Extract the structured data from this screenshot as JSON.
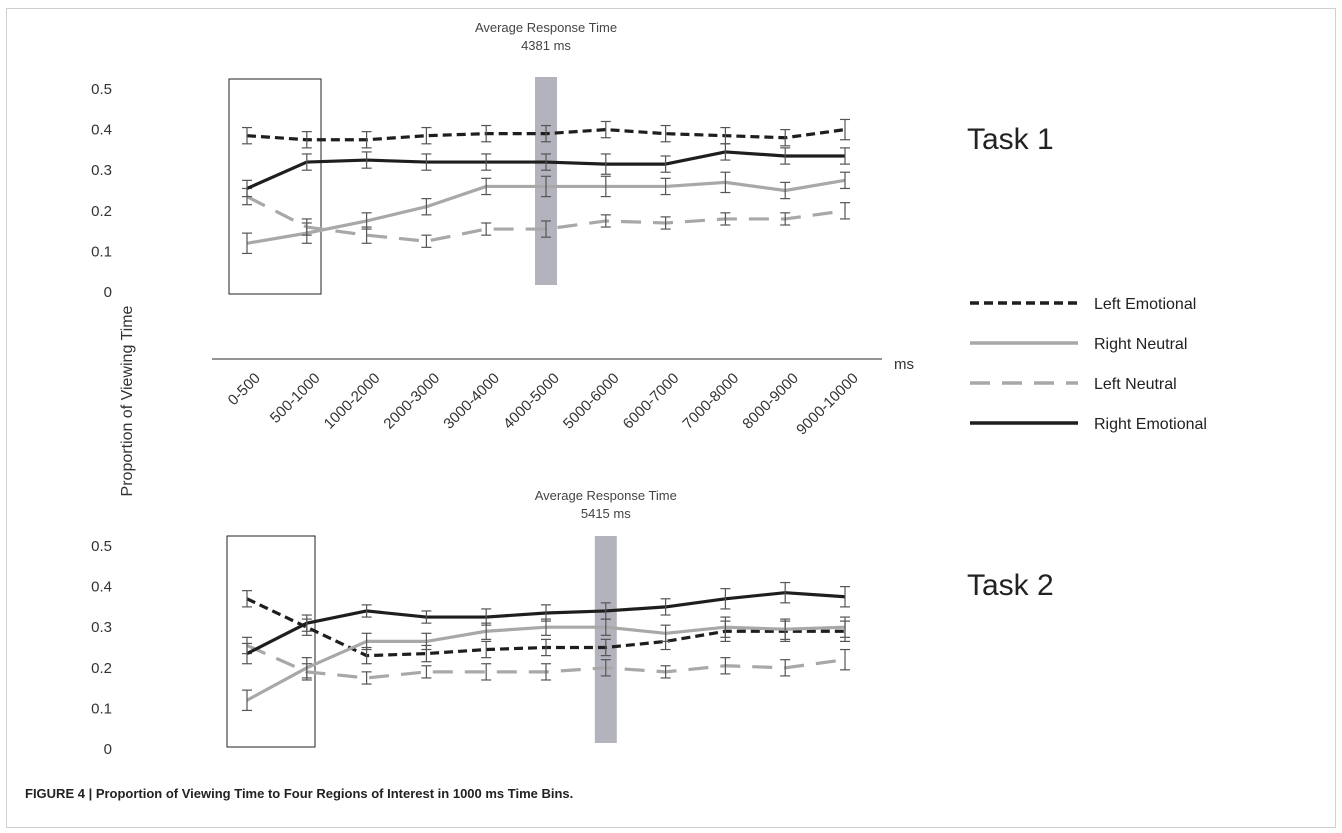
{
  "caption": "FIGURE 4 | Proportion of Viewing Time to Four Regions of Interest in 1000 ms Time Bins.",
  "y_axis_label": "Proportion of Viewing Time",
  "x_unit_label": "ms",
  "colors": {
    "dark": "#1e1e1e",
    "light": "#a8a8a8",
    "band": "#b3b3be"
  },
  "legend": [
    {
      "name": "Left Emotional",
      "color": "#1e1e1e",
      "dash": "dashed-short"
    },
    {
      "name": "Right Neutral",
      "color": "#a8a8a8",
      "dash": "solid"
    },
    {
      "name": "Left Neutral",
      "color": "#a8a8a8",
      "dash": "dashed-long"
    },
    {
      "name": "Right Emotional",
      "color": "#1e1e1e",
      "dash": "solid"
    }
  ],
  "chart_data": [
    {
      "type": "line",
      "title": "Task 1",
      "categories": [
        "0-500",
        "500-1000",
        "1000-2000",
        "2000-3000",
        "3000-4000",
        "4000-5000",
        "5000-6000",
        "6000-7000",
        "7000-8000",
        "8000-9000",
        "9000-10000"
      ],
      "ylim": [
        0,
        0.5
      ],
      "y_ticks": [
        "0",
        "0.1",
        "0.2",
        "0.3",
        "0.4",
        "0.5"
      ],
      "avg_response": {
        "label": "Average Response Time",
        "value": "4381 ms",
        "position": 5.0
      },
      "highlight_box": [
        "0-500",
        "500-1000"
      ],
      "series": [
        {
          "name": "Left Emotional",
          "values": [
            0.385,
            0.375,
            0.375,
            0.385,
            0.39,
            0.39,
            0.4,
            0.39,
            0.385,
            0.38,
            0.4
          ],
          "err": [
            0.02,
            0.02,
            0.02,
            0.02,
            0.02,
            0.02,
            0.02,
            0.02,
            0.02,
            0.02,
            0.025
          ]
        },
        {
          "name": "Right Neutral",
          "values": [
            0.12,
            0.145,
            0.175,
            0.21,
            0.26,
            0.26,
            0.26,
            0.26,
            0.27,
            0.25,
            0.275
          ],
          "err": [
            0.025,
            0.025,
            0.02,
            0.02,
            0.02,
            0.025,
            0.025,
            0.02,
            0.025,
            0.02,
            0.02
          ]
        },
        {
          "name": "Left Neutral",
          "values": [
            0.235,
            0.16,
            0.14,
            0.125,
            0.155,
            0.155,
            0.175,
            0.17,
            0.18,
            0.18,
            0.2
          ],
          "err": [
            0.02,
            0.02,
            0.02,
            0.015,
            0.015,
            0.02,
            0.015,
            0.015,
            0.015,
            0.015,
            0.02
          ]
        },
        {
          "name": "Right Emotional",
          "values": [
            0.255,
            0.32,
            0.325,
            0.32,
            0.32,
            0.32,
            0.315,
            0.315,
            0.345,
            0.335,
            0.335
          ],
          "err": [
            0.02,
            0.02,
            0.02,
            0.02,
            0.02,
            0.02,
            0.025,
            0.02,
            0.02,
            0.02,
            0.02
          ]
        }
      ]
    },
    {
      "type": "line",
      "title": "Task 2",
      "categories": [
        "0-500",
        "500-1000",
        "1000-2000",
        "2000-3000",
        "3000-4000",
        "4000-5000",
        "5000-6000",
        "6000-7000",
        "7000-8000",
        "8000-9000",
        "9000-10000"
      ],
      "ylim": [
        0,
        0.5
      ],
      "y_ticks": [
        "0",
        "0.1",
        "0.2",
        "0.3",
        "0.4",
        "0.5"
      ],
      "avg_response": {
        "label": "Average Response Time",
        "value": "5415 ms",
        "position": 6.0
      },
      "highlight_box": [
        "0-500",
        "500-1000"
      ],
      "series": [
        {
          "name": "Left Emotional",
          "values": [
            0.37,
            0.3,
            0.23,
            0.235,
            0.245,
            0.25,
            0.25,
            0.265,
            0.29,
            0.29,
            0.29
          ],
          "err": [
            0.02,
            0.02,
            0.02,
            0.02,
            0.02,
            0.02,
            0.02,
            0.02,
            0.025,
            0.025,
            0.025
          ]
        },
        {
          "name": "Right Neutral",
          "values": [
            0.12,
            0.2,
            0.265,
            0.265,
            0.29,
            0.3,
            0.3,
            0.285,
            0.3,
            0.295,
            0.3
          ],
          "err": [
            0.025,
            0.025,
            0.02,
            0.02,
            0.02,
            0.02,
            0.02,
            0.02,
            0.025,
            0.025,
            0.025
          ]
        },
        {
          "name": "Left Neutral",
          "values": [
            0.255,
            0.19,
            0.175,
            0.19,
            0.19,
            0.19,
            0.2,
            0.19,
            0.205,
            0.2,
            0.22
          ],
          "err": [
            0.02,
            0.02,
            0.015,
            0.015,
            0.02,
            0.02,
            0.02,
            0.015,
            0.02,
            0.02,
            0.025
          ]
        },
        {
          "name": "Right Emotional",
          "values": [
            0.235,
            0.31,
            0.34,
            0.325,
            0.325,
            0.335,
            0.34,
            0.35,
            0.37,
            0.385,
            0.375
          ],
          "err": [
            0.025,
            0.02,
            0.015,
            0.015,
            0.02,
            0.02,
            0.02,
            0.02,
            0.025,
            0.025,
            0.025
          ]
        }
      ]
    }
  ]
}
